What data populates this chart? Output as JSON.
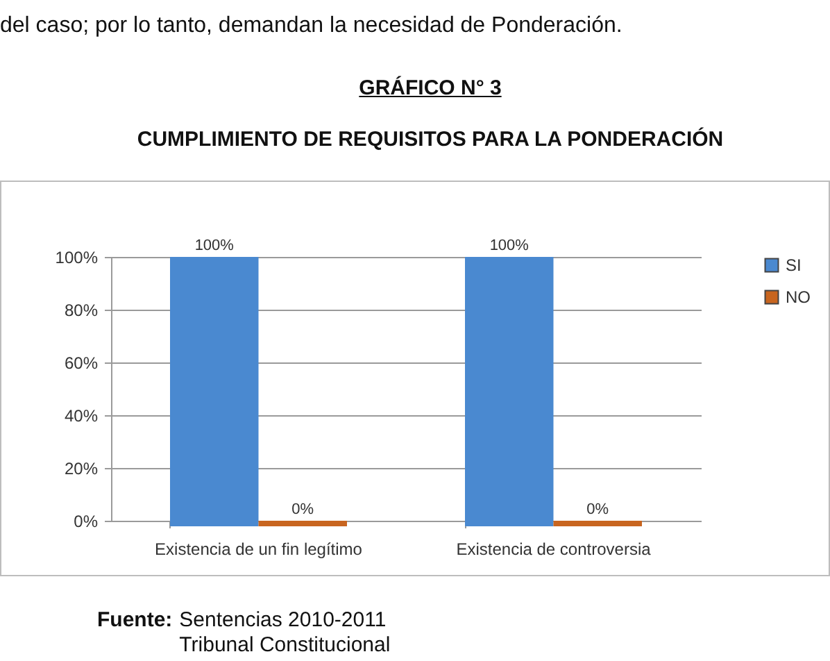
{
  "chart_data": {
    "type": "bar",
    "title": "CUMPLIMIENTO DE REQUISITOS PARA LA PONDERACIÓN",
    "annotations": [
      "del caso; por lo tanto, demandan la necesidad de Ponderación.",
      "GRÁFICO N° 3",
      "Fuente: Sentencias 2010-2011\nTribunal Constitucional"
    ],
    "categories": [
      "Existencia de un fin legítimo",
      "Existencia de controversia"
    ],
    "series": [
      {
        "name": "SI",
        "color": "#4a89d0",
        "values": [
          100,
          100
        ],
        "value_labels": [
          "100%",
          "100%"
        ]
      },
      {
        "name": "NO",
        "color": "#c8651f",
        "values": [
          0,
          0
        ],
        "value_labels": [
          "0%",
          "0%"
        ]
      }
    ],
    "ylim": [
      0,
      100
    ],
    "yticks": [
      {
        "value": 0,
        "label": "0%"
      },
      {
        "value": 20,
        "label": "20%"
      },
      {
        "value": 40,
        "label": "40%"
      },
      {
        "value": 60,
        "label": "60%"
      },
      {
        "value": 80,
        "label": "80%"
      },
      {
        "value": 100,
        "label": "100%"
      }
    ],
    "grid": "y",
    "legend": "right"
  }
}
